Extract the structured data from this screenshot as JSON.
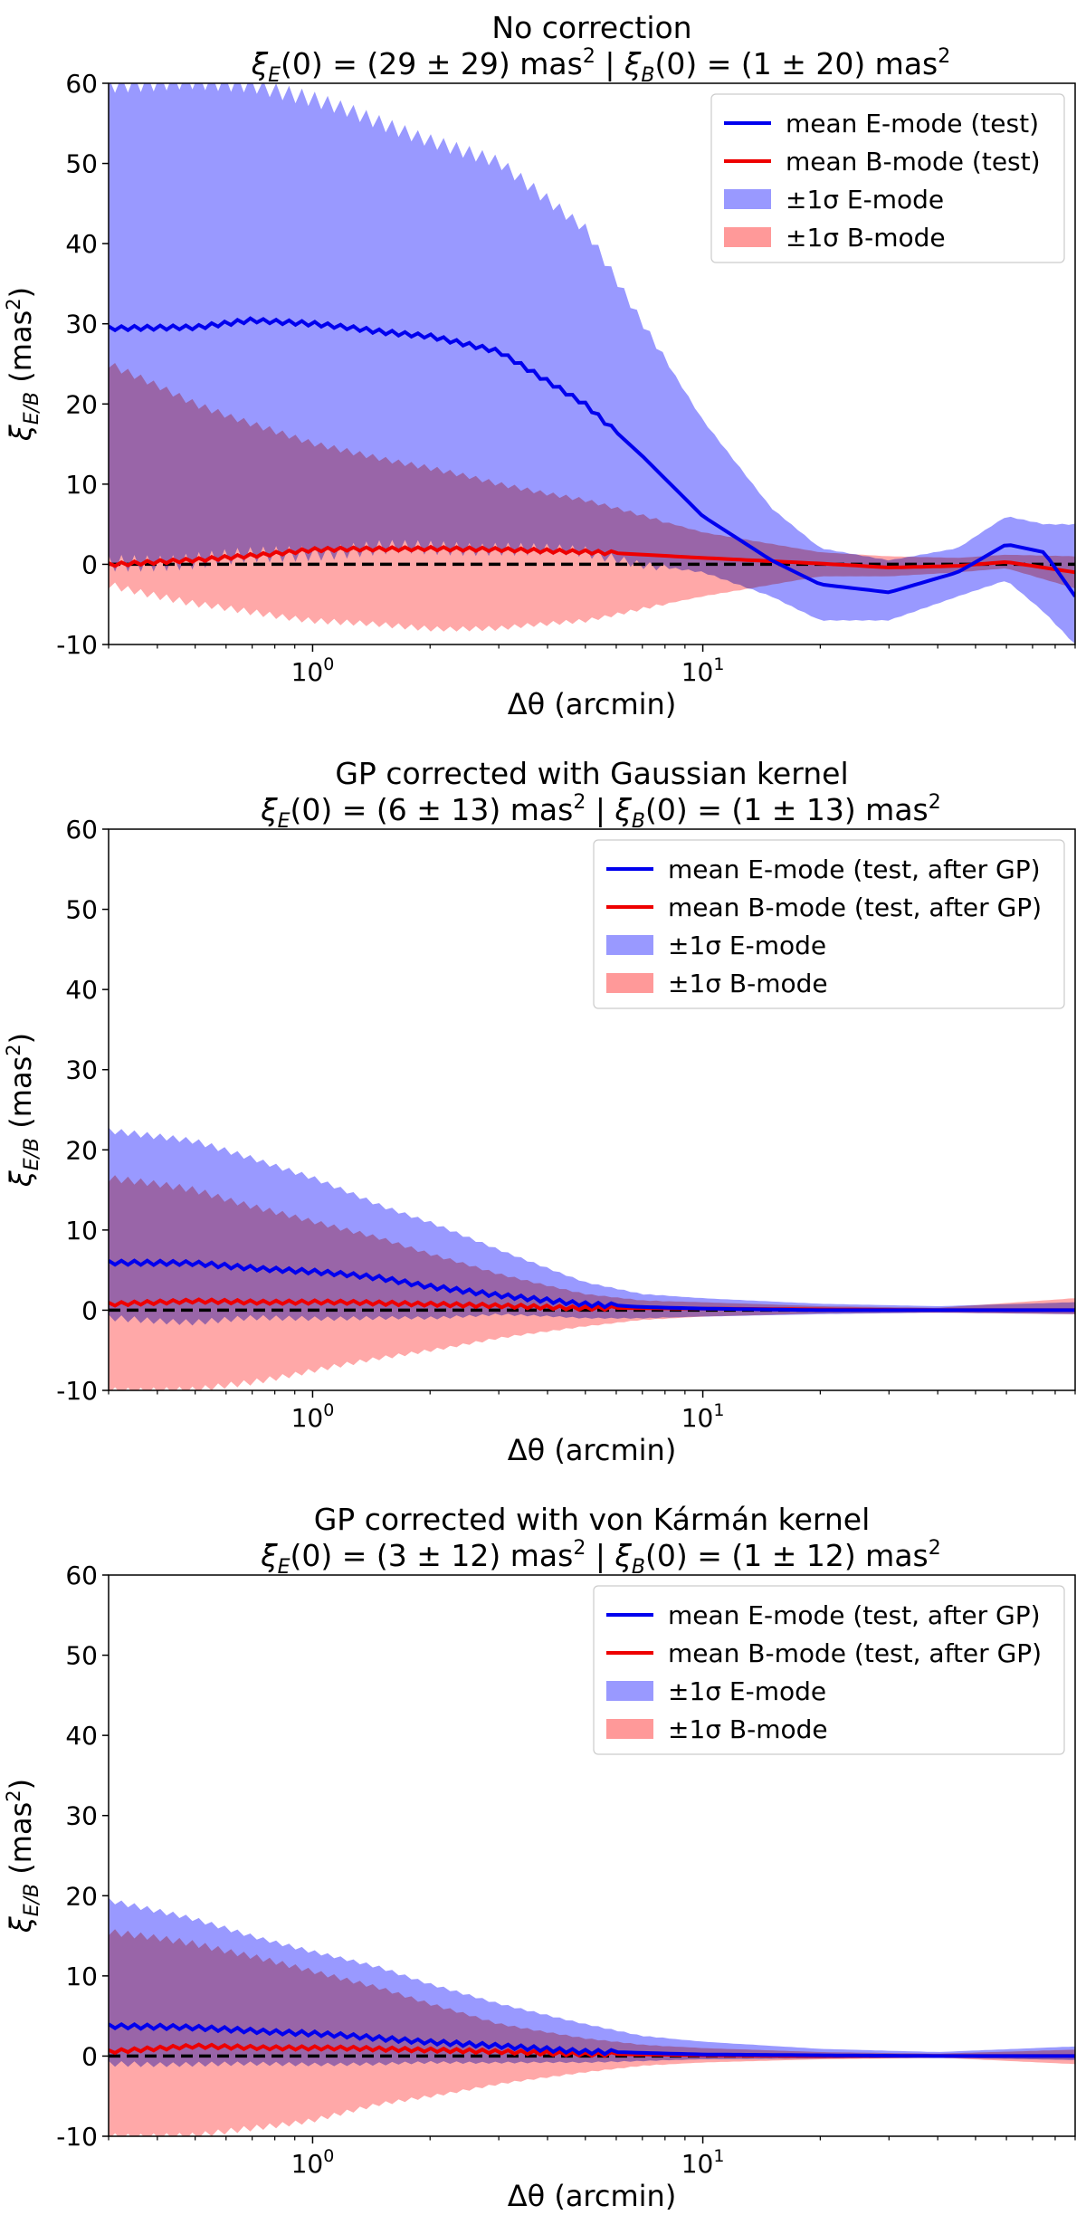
{
  "colors": {
    "e_line": "#0000ee",
    "b_line": "#ee0000",
    "e_band": "#9999ff",
    "b_band": "#ff9999",
    "overlap": "#b2569a",
    "zero_line": "#000000"
  },
  "chart_data": [
    {
      "type": "area",
      "title_line1": "No correction",
      "title_xiE_value": "(29 ± 29) mas",
      "title_xiB_value": "(1 ± 20) mas",
      "xlabel": "Δθ (arcmin)",
      "ylabel_sub": "E/B",
      "ylabel_unit": "(mas",
      "xscale": "log",
      "xlim": [
        0.3,
        90
      ],
      "ylim": [
        -10,
        60
      ],
      "yticks": [
        -10,
        0,
        10,
        20,
        30,
        40,
        50,
        60
      ],
      "xtick_labels": [
        {
          "base": "10",
          "exp": "0",
          "value": 1
        },
        {
          "base": "10",
          "exp": "1",
          "value": 10
        }
      ],
      "legend_location": "top-right",
      "legend": [
        "mean E-mode (test)",
        "mean B-mode (test)",
        "±1σ E-mode",
        "±1σ B-mode"
      ],
      "series": [
        {
          "name": "mean E-mode (test)",
          "x": [
            0.3,
            0.5,
            0.7,
            1,
            1.5,
            2,
            3,
            5,
            7,
            10,
            15,
            20,
            30,
            45,
            60,
            75,
            90
          ],
          "values": [
            29.5,
            29.5,
            30.5,
            30,
            29,
            28.5,
            26.5,
            20,
            13.5,
            6,
            0.5,
            -2.5,
            -3.5,
            -1,
            2.5,
            1.5,
            -4
          ]
        },
        {
          "name": "mean B-mode (test)",
          "x": [
            0.3,
            0.5,
            1,
            2,
            3,
            5,
            10,
            20,
            30,
            45,
            60,
            90
          ],
          "values": [
            0,
            0.5,
            1.8,
            2,
            1.8,
            1.6,
            0.8,
            0.1,
            -0.4,
            -0.2,
            0.3,
            -1
          ]
        },
        {
          "name": "±1σ E-mode",
          "x": [
            0.3,
            0.5,
            0.7,
            1,
            1.5,
            2,
            3,
            5,
            7,
            10,
            15,
            20,
            30,
            45,
            60,
            75,
            90
          ],
          "upper": [
            60,
            60,
            60,
            58,
            55,
            53,
            50,
            42,
            30,
            18,
            7,
            2,
            0.5,
            2,
            6,
            5,
            5
          ],
          "lower": [
            0,
            0.5,
            1,
            1.5,
            2,
            2,
            2,
            1.5,
            0,
            -1,
            -4,
            -7,
            -7,
            -4,
            -2,
            -6,
            -10
          ]
        },
        {
          "name": "±1σ B-mode",
          "x": [
            0.3,
            0.5,
            1,
            2,
            3,
            5,
            10,
            20,
            30,
            45,
            60,
            90
          ],
          "upper": [
            25,
            20,
            15,
            12,
            10,
            8,
            4,
            1.5,
            1,
            0.8,
            1.2,
            1
          ],
          "lower": [
            -2.5,
            -5,
            -7,
            -8,
            -8,
            -7,
            -4,
            -1.5,
            -1.5,
            -1,
            -0.5,
            -3
          ]
        }
      ]
    },
    {
      "type": "area",
      "title_line1": "GP corrected with Gaussian kernel",
      "title_xiE_value": "(6 ± 13) mas",
      "title_xiB_value": "(1 ± 13) mas",
      "xlabel": "Δθ (arcmin)",
      "ylabel_sub": "E/B",
      "ylabel_unit": "(mas",
      "xscale": "log",
      "xlim": [
        0.3,
        90
      ],
      "ylim": [
        -10,
        60
      ],
      "yticks": [
        -10,
        0,
        10,
        20,
        30,
        40,
        50,
        60
      ],
      "xtick_labels": [
        {
          "base": "10",
          "exp": "0",
          "value": 1
        },
        {
          "base": "10",
          "exp": "1",
          "value": 10
        }
      ],
      "legend_location": "top-right",
      "legend": [
        "mean E-mode (test, after GP)",
        "mean B-mode (test, after GP)",
        "±1σ E-mode",
        "±1σ B-mode"
      ],
      "series": [
        {
          "name": "mean E-mode (test, after GP)",
          "x": [
            0.3,
            0.5,
            0.7,
            1,
            1.5,
            2,
            3,
            5,
            7,
            10,
            20,
            40,
            90
          ],
          "values": [
            6,
            5.8,
            5.3,
            4.8,
            4,
            3,
            1.8,
            0.8,
            0.4,
            0.2,
            0,
            0,
            0
          ]
        },
        {
          "name": "mean B-mode (test, after GP)",
          "x": [
            0.3,
            0.5,
            1,
            2,
            3,
            5,
            10,
            20,
            40,
            90
          ],
          "values": [
            0.8,
            1.1,
            1,
            0.8,
            0.5,
            0.3,
            0.2,
            0.1,
            0,
            0
          ]
        },
        {
          "name": "±1σ E-mode",
          "x": [
            0.3,
            0.5,
            0.7,
            1,
            1.5,
            2,
            3,
            5,
            7,
            10,
            20,
            40,
            90
          ],
          "upper": [
            22.5,
            21,
            19,
            16.5,
            13,
            11,
            7.5,
            3.5,
            2,
            1.5,
            0.8,
            0.5,
            1
          ],
          "lower": [
            -1,
            -1.5,
            -1,
            -1,
            -1,
            -1,
            -0.5,
            -1,
            -1,
            -0.8,
            -0.5,
            -0.3,
            -0.5
          ]
        },
        {
          "name": "±1σ B-mode",
          "x": [
            0.3,
            0.5,
            0.7,
            1,
            1.5,
            2,
            3,
            5,
            7,
            10,
            20,
            40,
            90
          ],
          "upper": [
            16.5,
            15,
            13,
            11,
            9,
            7,
            4.5,
            2,
            1.2,
            1,
            0.5,
            0.3,
            1.5
          ],
          "lower": [
            -10,
            -10,
            -9,
            -7.5,
            -6,
            -5,
            -3.5,
            -2,
            -1.2,
            -0.8,
            -0.4,
            -0.3,
            -0.5
          ]
        }
      ]
    },
    {
      "type": "area",
      "title_line1": "GP corrected with von Kármán kernel",
      "title_xiE_value": "(3 ± 12) mas",
      "title_xiB_value": "(1 ± 12) mas",
      "xlabel": "Δθ (arcmin)",
      "ylabel_sub": "E/B",
      "ylabel_unit": "(mas",
      "xscale": "log",
      "xlim": [
        0.3,
        90
      ],
      "ylim": [
        -10,
        60
      ],
      "yticks": [
        -10,
        0,
        10,
        20,
        30,
        40,
        50,
        60
      ],
      "xtick_labels": [
        {
          "base": "10",
          "exp": "0",
          "value": 1
        },
        {
          "base": "10",
          "exp": "1",
          "value": 10
        }
      ],
      "legend_location": "top-right",
      "legend": [
        "mean E-mode (test, after GP)",
        "mean B-mode (test, after GP)",
        "±1σ E-mode",
        "±1σ B-mode"
      ],
      "series": [
        {
          "name": "mean E-mode (test, after GP)",
          "x": [
            0.3,
            0.5,
            0.7,
            1,
            1.5,
            2,
            3,
            5,
            7,
            10,
            20,
            40,
            90
          ],
          "values": [
            3.8,
            3.5,
            3.2,
            2.8,
            2.2,
            1.8,
            1.2,
            0.6,
            0.4,
            0.2,
            0.1,
            0,
            0
          ]
        },
        {
          "name": "mean B-mode (test, after GP)",
          "x": [
            0.3,
            0.5,
            1,
            2,
            3,
            5,
            10,
            20,
            40,
            90
          ],
          "values": [
            0.6,
            1.2,
            1,
            0.8,
            0.5,
            0.3,
            0.1,
            0,
            0,
            0
          ]
        },
        {
          "name": "±1σ E-mode",
          "x": [
            0.3,
            0.5,
            0.7,
            1,
            1.5,
            2,
            3,
            5,
            7,
            10,
            20,
            40,
            90
          ],
          "upper": [
            19.5,
            17,
            15,
            13,
            11,
            9,
            6.5,
            4,
            2.5,
            1.8,
            0.9,
            0.5,
            1.2
          ],
          "lower": [
            -1,
            -1,
            -1,
            -1,
            -1,
            -0.8,
            -0.8,
            -0.8,
            -0.6,
            -0.4,
            -0.3,
            -0.2,
            -0.5
          ]
        },
        {
          "name": "±1σ B-mode",
          "x": [
            0.3,
            0.5,
            0.7,
            1,
            1.5,
            2,
            3,
            5,
            7,
            10,
            20,
            40,
            90
          ],
          "upper": [
            15.5,
            14,
            12.5,
            10.5,
            8.5,
            6.5,
            4,
            2.2,
            1.4,
            1,
            0.5,
            0.3,
            0.8
          ],
          "lower": [
            -10,
            -10,
            -9,
            -8,
            -6,
            -5,
            -3.5,
            -2,
            -1.2,
            -0.8,
            -0.4,
            -0.2,
            -1
          ]
        }
      ]
    }
  ]
}
